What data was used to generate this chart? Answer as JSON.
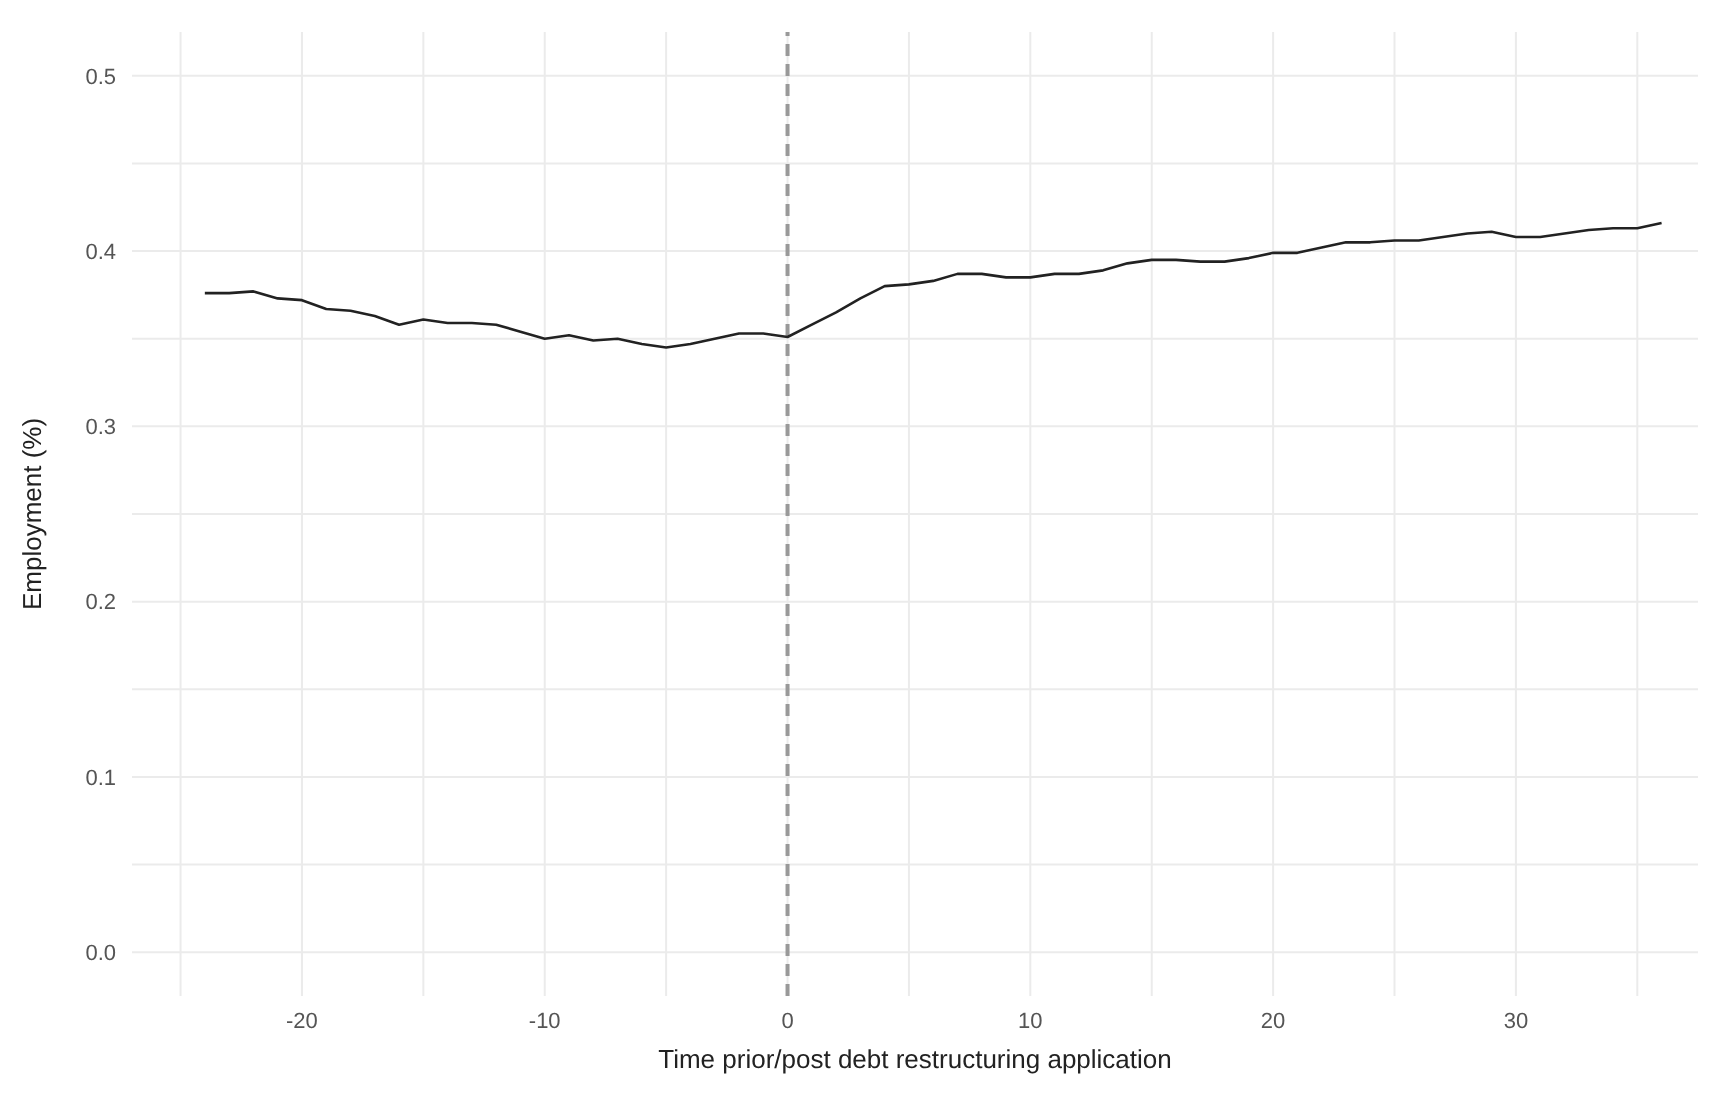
{
  "chart_data": {
    "type": "line",
    "xlabel": "Time prior/post debt restructuring application",
    "ylabel": "Employment (%)",
    "x": [
      -24,
      -23,
      -22,
      -21,
      -20,
      -19,
      -18,
      -17,
      -16,
      -15,
      -14,
      -13,
      -12,
      -11,
      -10,
      -9,
      -8,
      -7,
      -6,
      -5,
      -4,
      -3,
      -2,
      -1,
      0,
      1,
      2,
      3,
      4,
      5,
      6,
      7,
      8,
      9,
      10,
      11,
      12,
      13,
      14,
      15,
      16,
      17,
      18,
      19,
      20,
      21,
      22,
      23,
      24,
      25,
      26,
      27,
      28,
      29,
      30,
      31,
      32,
      33,
      34,
      35,
      36
    ],
    "series": [
      {
        "color": "#222222",
        "values": [
          0.376,
          0.376,
          0.377,
          0.373,
          0.372,
          0.367,
          0.366,
          0.363,
          0.358,
          0.361,
          0.359,
          0.359,
          0.358,
          0.354,
          0.35,
          0.352,
          0.349,
          0.35,
          0.347,
          0.345,
          0.347,
          0.35,
          0.353,
          0.353,
          0.351,
          0.358,
          0.365,
          0.373,
          0.38,
          0.381,
          0.383,
          0.387,
          0.387,
          0.385,
          0.385,
          0.387,
          0.387,
          0.389,
          0.393,
          0.395,
          0.395,
          0.394,
          0.394,
          0.396,
          0.399,
          0.399,
          0.402,
          0.405,
          0.405,
          0.406,
          0.406,
          0.408,
          0.41,
          0.411,
          0.408,
          0.408,
          0.41,
          0.412,
          0.413,
          0.413,
          0.416
        ]
      }
    ],
    "xlim": [
      -27,
      37.5
    ],
    "xticks": [
      {
        "value": -25,
        "label": null
      },
      -20,
      {
        "value": -15,
        "label": null
      },
      -10,
      {
        "value": -5,
        "label": null
      },
      0,
      {
        "value": 5,
        "label": null
      },
      10,
      {
        "value": 15,
        "label": null
      },
      20,
      {
        "value": 25,
        "label": null
      },
      30,
      {
        "value": 35,
        "label": null
      }
    ],
    "ylim": [
      -0.025,
      0.525
    ],
    "yticks": [
      {
        "value": 0,
        "label": "0.0"
      },
      {
        "value": 0.05,
        "label": null
      },
      0.1,
      {
        "value": 0.15,
        "label": null
      },
      0.2,
      {
        "value": 0.25,
        "label": null
      },
      0.3,
      {
        "value": 0.35,
        "label": null
      },
      0.4,
      {
        "value": 0.45,
        "label": null
      },
      0.5
    ],
    "ref_lines": [
      {
        "axis": "x",
        "value": 0,
        "color": "#999999",
        "line_style": "dashed"
      }
    ],
    "grid": true,
    "marker": "none",
    "line_style": "solid",
    "legend": false
  }
}
